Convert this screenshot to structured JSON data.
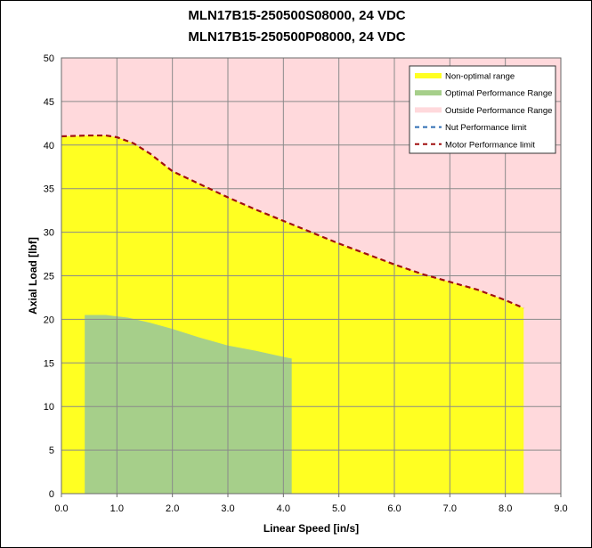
{
  "chart_data": {
    "type": "area",
    "title": [
      "MLN17B15-250500S08000, 24 VDC",
      "MLN17B15-250500P08000, 24 VDC"
    ],
    "xlabel": "Linear Speed [in/s]",
    "ylabel": "Axial Load [lbf]",
    "xlim": [
      0,
      9
    ],
    "ylim": [
      0,
      50
    ],
    "x_ticks": [
      "0.0",
      "1.0",
      "2.0",
      "3.0",
      "4.0",
      "5.0",
      "6.0",
      "7.0",
      "8.0",
      "9.0"
    ],
    "y_ticks": [
      "0",
      "5",
      "10",
      "15",
      "20",
      "25",
      "30",
      "35",
      "40",
      "45",
      "50"
    ],
    "grid": true,
    "legend_position": "top-right",
    "colors": {
      "outside": "#ffd9dc",
      "non_optimal": "#ffff22",
      "optimal": "#a6cf8a",
      "nut_limit": "#2e6db4",
      "motor_limit": "#a01010"
    },
    "series": [
      {
        "name": "Non-optimal range",
        "style": "area",
        "x": [
          0.0,
          0.5,
          0.8,
          1.0,
          1.3,
          1.6,
          2.0,
          2.5,
          3.0,
          3.5,
          4.0,
          4.5,
          5.0,
          5.5,
          6.0,
          6.5,
          7.0,
          7.5,
          8.0,
          8.33
        ],
        "y": [
          41.0,
          41.1,
          41.1,
          40.9,
          40.2,
          39.0,
          37.0,
          35.5,
          34.0,
          32.6,
          31.3,
          30.0,
          28.7,
          27.5,
          26.3,
          25.2,
          24.3,
          23.4,
          22.2,
          21.3
        ]
      },
      {
        "name": "Optimal Performance Range",
        "style": "area",
        "x": [
          0.42,
          0.8,
          1.2,
          1.6,
          2.0,
          2.5,
          3.0,
          3.5,
          4.0,
          4.15
        ],
        "y": [
          20.5,
          20.5,
          20.2,
          19.6,
          18.9,
          17.9,
          17.0,
          16.4,
          15.7,
          15.5
        ]
      },
      {
        "name": "Outside Performance Range",
        "style": "area",
        "x": [],
        "y": []
      },
      {
        "name": "Nut Performance limit",
        "style": "dashed-line",
        "x": [],
        "y": []
      },
      {
        "name": "Motor Performance limit",
        "style": "dashed-line",
        "x": [
          0.0,
          0.5,
          0.8,
          1.0,
          1.3,
          1.6,
          2.0,
          2.5,
          3.0,
          3.5,
          4.0,
          4.5,
          5.0,
          5.5,
          6.0,
          6.5,
          7.0,
          7.5,
          8.0,
          8.33
        ],
        "y": [
          41.0,
          41.1,
          41.1,
          40.9,
          40.2,
          39.0,
          37.0,
          35.5,
          34.0,
          32.6,
          31.3,
          30.0,
          28.7,
          27.5,
          26.3,
          25.2,
          24.3,
          23.4,
          22.2,
          21.3
        ]
      }
    ]
  }
}
